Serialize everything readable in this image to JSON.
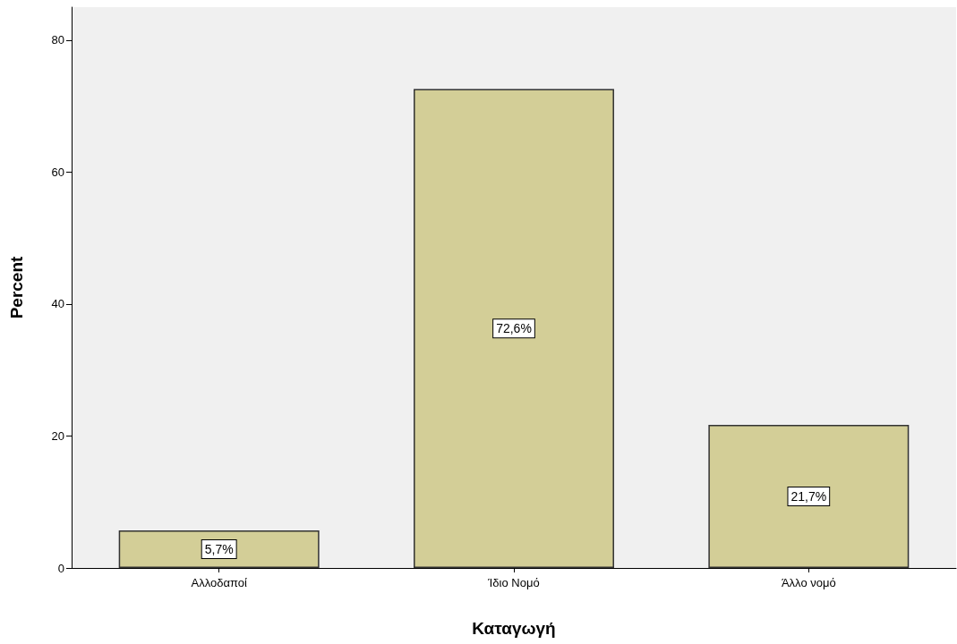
{
  "chart_data": {
    "type": "bar",
    "xlabel": "Καταγωγή",
    "ylabel": "Percent",
    "categories": [
      "Αλλοδαποί",
      "Ίδιο Νομό",
      "Άλλο νομό"
    ],
    "values": [
      5.7,
      72.6,
      21.7
    ],
    "value_labels": [
      "5,7%",
      "72,6%",
      "21,7%"
    ],
    "color": "#d3ce97",
    "ylim": [
      0,
      85
    ],
    "yticks": [
      0,
      20,
      40,
      60,
      80
    ],
    "grid": false
  }
}
